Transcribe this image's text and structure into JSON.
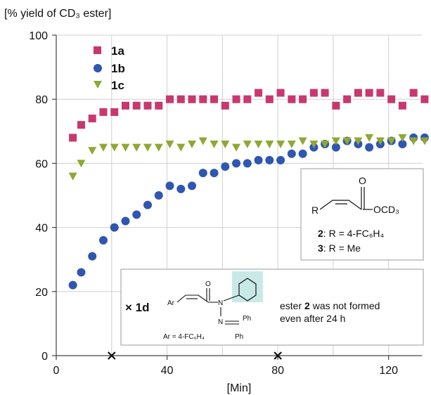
{
  "chart_data": {
    "type": "scatter",
    "ylabel": "[% yield of CD₃ ester]",
    "xlabel": "[Min]",
    "xlim": [
      0,
      132
    ],
    "ylim": [
      0,
      100
    ],
    "xticks": [
      0,
      40,
      80,
      120
    ],
    "yticks": [
      0,
      20,
      40,
      60,
      80,
      100
    ],
    "grid": true,
    "legend_position": "top-left",
    "series": [
      {
        "name": "1a",
        "marker": "square",
        "color": "#c8386e",
        "x": [
          6,
          9,
          13,
          17,
          21,
          25,
          29,
          33,
          37,
          41,
          45,
          49,
          53,
          57,
          61,
          65,
          69,
          73,
          77,
          81,
          85,
          89,
          93,
          97,
          101,
          105,
          109,
          113,
          117,
          121,
          125,
          129,
          133
        ],
        "y": [
          68,
          72,
          74,
          76,
          76,
          78,
          78,
          78,
          78,
          80,
          80,
          80,
          80,
          80,
          78,
          80,
          80,
          82,
          80,
          82,
          80,
          80,
          82,
          82,
          78,
          80,
          82,
          82,
          82,
          80,
          78,
          82,
          80
        ]
      },
      {
        "name": "1b",
        "marker": "circle",
        "color": "#2f56b0",
        "x": [
          6,
          9,
          13,
          17,
          21,
          25,
          29,
          33,
          37,
          41,
          45,
          49,
          53,
          57,
          61,
          65,
          69,
          73,
          77,
          81,
          85,
          89,
          93,
          97,
          101,
          105,
          109,
          113,
          117,
          121,
          125,
          129,
          133
        ],
        "y": [
          22,
          26,
          31,
          36,
          40,
          42,
          44,
          47,
          50,
          53,
          52,
          53,
          57,
          57,
          59,
          60,
          60,
          61,
          61,
          61,
          63,
          63,
          65,
          66,
          65,
          67,
          66,
          65,
          66,
          67,
          66,
          68,
          68
        ]
      },
      {
        "name": "1c",
        "marker": "triangle-down",
        "color": "#8ea832",
        "x": [
          6,
          9,
          13,
          17,
          21,
          25,
          29,
          33,
          37,
          41,
          45,
          49,
          53,
          57,
          61,
          65,
          69,
          73,
          77,
          81,
          85,
          89,
          93,
          97,
          101,
          105,
          109,
          113,
          117,
          121,
          125,
          129,
          133
        ],
        "y": [
          56,
          60,
          64,
          65,
          65,
          65,
          65,
          65,
          65,
          66,
          65,
          66,
          67,
          66,
          66,
          65,
          66,
          66,
          66,
          66,
          66,
          67,
          66,
          66,
          67,
          67,
          67,
          68,
          67,
          67,
          68,
          67,
          67
        ]
      },
      {
        "name": "1d",
        "marker": "x",
        "color": "#111111",
        "x": [
          20,
          80
        ],
        "y": [
          0,
          0
        ]
      }
    ],
    "annotations": {
      "box_right": {
        "r_label": "R",
        "ester_o": "O",
        "ester_group": "OCD₃",
        "line1_bold": "2",
        "line1_rest": ": R = 4-FC₆H₄",
        "line2_bold": "3",
        "line2_rest": ": R = Me"
      },
      "box_bottom": {
        "marker_label": "× 1d",
        "ar": "Ar",
        "o": "O",
        "n1": "N",
        "n2": "N",
        "ph1": "Ph",
        "ph2": "Ph",
        "ar_def": "Ar = 4-FC₆H₄",
        "text1_pre": "ester ",
        "text1_bold": "2",
        "text1_post": " was not formed",
        "text2": "even after 24 h"
      }
    }
  }
}
